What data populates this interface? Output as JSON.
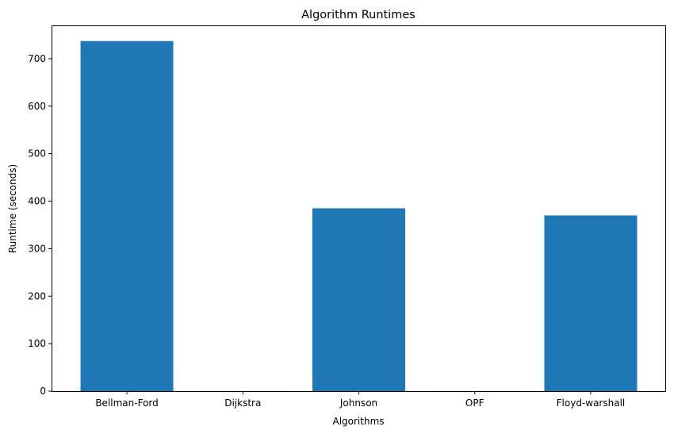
{
  "chart_data": {
    "type": "bar",
    "title": "Algorithm Runtimes",
    "xlabel": "Algorithms",
    "ylabel": "Runtime (seconds)",
    "categories": [
      "Bellman-Ford",
      "Dijkstra",
      "Johnson",
      "OPF",
      "Floyd-warshall"
    ],
    "values": [
      737,
      0.3,
      385,
      0.3,
      370
    ],
    "ylim": [
      0,
      770
    ],
    "yticks": [
      0,
      100,
      200,
      300,
      400,
      500,
      600,
      700
    ],
    "grid": false,
    "legend": "none",
    "bar_color": "#1f77b4"
  }
}
